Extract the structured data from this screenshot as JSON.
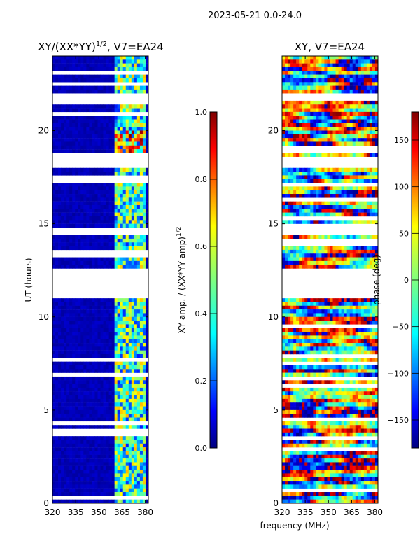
{
  "suptitle": "2023-05-21 0.0-24.0",
  "chart_data": [
    {
      "type": "heatmap",
      "title": "XY/(XX*YY)",
      "title_superscript": "1/2",
      "title_suffix": ", V7=EA24",
      "xlabel": "",
      "ylabel": "UT (hours)",
      "xlim": [
        320,
        382
      ],
      "ylim": [
        0,
        24
      ],
      "xticks": [
        320,
        335,
        350,
        365,
        380
      ],
      "yticks": [
        0,
        5,
        10,
        15,
        20
      ],
      "colorbar": {
        "label": "XY amp. / (XX*YY amp)",
        "label_superscript": "1/2",
        "ticks": [
          "0.0",
          "0.2",
          "0.4",
          "0.6",
          "0.8",
          "1.0"
        ],
        "range": [
          0,
          1
        ],
        "colormap": "jet"
      },
      "active_band_mhz": [
        361,
        381
      ],
      "data_gaps_hours": [
        [
          11.0,
          12.6
        ],
        [
          18.1,
          18.5
        ],
        [
          14.4,
          14.8
        ],
        [
          21.6,
          21.9
        ]
      ]
    },
    {
      "type": "heatmap",
      "title": "XY, V7=EA24",
      "xlabel": "",
      "ylabel": "",
      "xlim": [
        320,
        382
      ],
      "ylim": [
        0,
        24
      ],
      "xticks": [
        320,
        335,
        350,
        365,
        380
      ],
      "yticks": [
        0,
        5,
        10,
        15,
        20
      ],
      "colorbar": {
        "label": "phase (deg)",
        "ticks": [
          "150",
          "100",
          "50",
          "0",
          "−50",
          "−100",
          "−150"
        ],
        "range": [
          -180,
          180
        ],
        "colormap": "jet"
      },
      "data_gaps_hours": [
        [
          11.0,
          12.6
        ],
        [
          18.1,
          18.5
        ],
        [
          14.4,
          14.8
        ],
        [
          21.6,
          21.9
        ]
      ]
    }
  ],
  "shared_xlabel": "frequency (MHz)",
  "colors": {
    "jet_0": "#00007f",
    "jet_1": "#0000ff",
    "jet_2": "#007fff",
    "jet_3": "#00ffff",
    "jet_4": "#7fff7f",
    "jet_5": "#ffff00",
    "jet_6": "#ff7f00",
    "jet_7": "#ff0000",
    "jet_8": "#7f0000"
  }
}
